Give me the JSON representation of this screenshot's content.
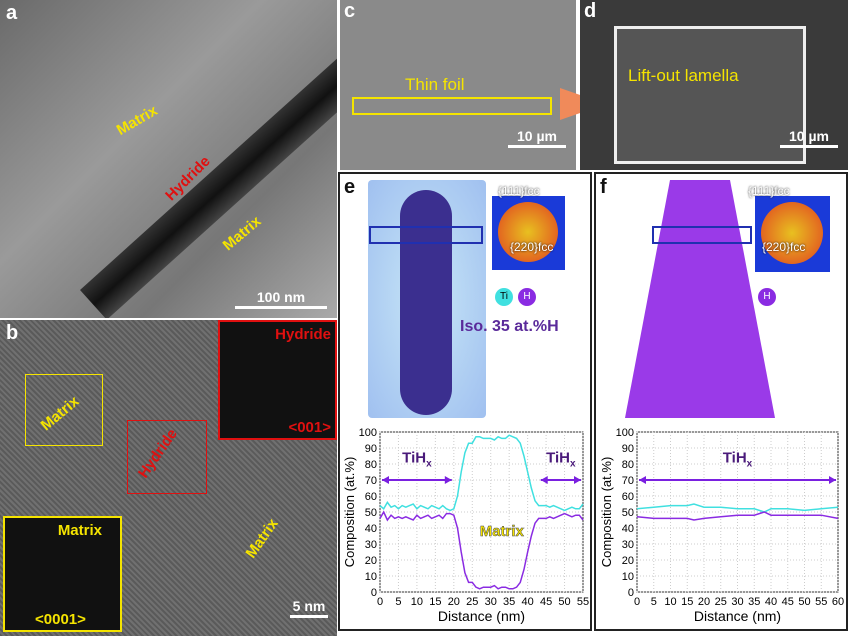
{
  "panels": {
    "a": {
      "label": "a",
      "matrix1": "Matrix",
      "hydride": "Hydride",
      "matrix2": "Matrix",
      "scale": "100 nm"
    },
    "b": {
      "label": "b",
      "matrix": "Matrix",
      "hydride": "Hydride",
      "matrix2": "Matrix",
      "inset_hydride": "Hydride",
      "inset_hydride_zone": "<001>",
      "inset_matrix": "Matrix",
      "inset_matrix_zone": "<0001>",
      "scale": "5 nm"
    },
    "c": {
      "label": "c",
      "text": "Thin foil",
      "scale": "10 µm"
    },
    "d": {
      "label": "d",
      "text": "Lift-out lamella",
      "scale": "10 µm"
    },
    "e": {
      "label": "e",
      "diff1": "{111}fcc",
      "diff2": "{220}fcc",
      "legend_ti": "Ti",
      "legend_h": "H",
      "iso": "Iso. 35 at.%H"
    },
    "f": {
      "label": "f",
      "diff1": "{111}fcc",
      "diff2": "{220}fcc",
      "legend_h": "H"
    }
  },
  "colors": {
    "ti": "#40e0e0",
    "h": "#8a2be2",
    "annotation": "#f5e400",
    "hydride": "#e01010"
  },
  "chart_data": [
    {
      "type": "line",
      "panel": "e",
      "xlabel": "Distance (nm)",
      "ylabel": "Composition (at.%)",
      "xlim": [
        0,
        55
      ],
      "ylim": [
        0,
        100
      ],
      "xticks": [
        0,
        5,
        10,
        15,
        20,
        25,
        30,
        35,
        40,
        45,
        50,
        55
      ],
      "yticks": [
        0,
        10,
        20,
        30,
        40,
        50,
        60,
        70,
        80,
        90,
        100
      ],
      "grid": true,
      "annotations": [
        {
          "text": "TiH",
          "sub": "x",
          "range": [
            0,
            20
          ]
        },
        {
          "text": "TiH",
          "sub": "x",
          "range": [
            43,
            55
          ]
        },
        {
          "text": "Matrix"
        }
      ],
      "x": [
        0,
        1,
        2,
        3,
        4,
        5,
        6,
        7,
        8,
        9,
        10,
        11,
        12,
        13,
        14,
        15,
        16,
        17,
        18,
        19,
        20,
        21,
        22,
        23,
        24,
        25,
        26,
        27,
        28,
        29,
        30,
        31,
        32,
        33,
        34,
        35,
        36,
        37,
        38,
        39,
        40,
        41,
        42,
        43,
        44,
        45,
        46,
        47,
        48,
        49,
        50,
        51,
        52,
        53,
        54,
        55
      ],
      "series": [
        {
          "color": "#40e0e0",
          "values": [
            54,
            52,
            56,
            53,
            54,
            52,
            54,
            53,
            54,
            55,
            52,
            54,
            53,
            52,
            54,
            53,
            52,
            54,
            52,
            51,
            52,
            60,
            75,
            87,
            93,
            93,
            97,
            97,
            96,
            96,
            96,
            95,
            97,
            96,
            96,
            98,
            97,
            96,
            93,
            85,
            75,
            65,
            57,
            54,
            54,
            54,
            53,
            54,
            53,
            52,
            51,
            52,
            53,
            52,
            52,
            55
          ]
        },
        {
          "color": "#8a2be2",
          "values": [
            46,
            50,
            45,
            48,
            46,
            47,
            46,
            47,
            46,
            45,
            48,
            46,
            47,
            48,
            46,
            47,
            48,
            46,
            49,
            49,
            48,
            40,
            25,
            12,
            6,
            6,
            3,
            2,
            3,
            3,
            3,
            4,
            2,
            3,
            3,
            2,
            2,
            3,
            6,
            14,
            25,
            35,
            43,
            46,
            46,
            46,
            47,
            46,
            47,
            48,
            49,
            48,
            47,
            48,
            48,
            45
          ]
        }
      ]
    },
    {
      "type": "line",
      "panel": "f",
      "xlabel": "Distance (nm)",
      "ylabel": "Composition (at.%)",
      "xlim": [
        0,
        60
      ],
      "ylim": [
        0,
        100
      ],
      "xticks": [
        0,
        5,
        10,
        15,
        20,
        25,
        30,
        35,
        40,
        45,
        50,
        55,
        60
      ],
      "yticks": [
        0,
        10,
        20,
        30,
        40,
        50,
        60,
        70,
        80,
        90,
        100
      ],
      "grid": true,
      "annotations": [
        {
          "text": "TiH",
          "sub": "x",
          "range": [
            0,
            60
          ]
        }
      ],
      "x": [
        0,
        5,
        10,
        15,
        17,
        20,
        25,
        30,
        35,
        38,
        40,
        45,
        50,
        55,
        60
      ],
      "series": [
        {
          "color": "#40e0e0",
          "values": [
            52,
            53,
            54,
            54,
            55,
            53,
            53,
            52,
            52,
            50,
            52,
            52,
            51,
            52,
            53
          ]
        },
        {
          "color": "#8a2be2",
          "values": [
            47,
            46,
            46,
            46,
            45,
            46,
            47,
            48,
            48,
            50,
            48,
            48,
            48,
            48,
            46
          ]
        }
      ]
    }
  ]
}
